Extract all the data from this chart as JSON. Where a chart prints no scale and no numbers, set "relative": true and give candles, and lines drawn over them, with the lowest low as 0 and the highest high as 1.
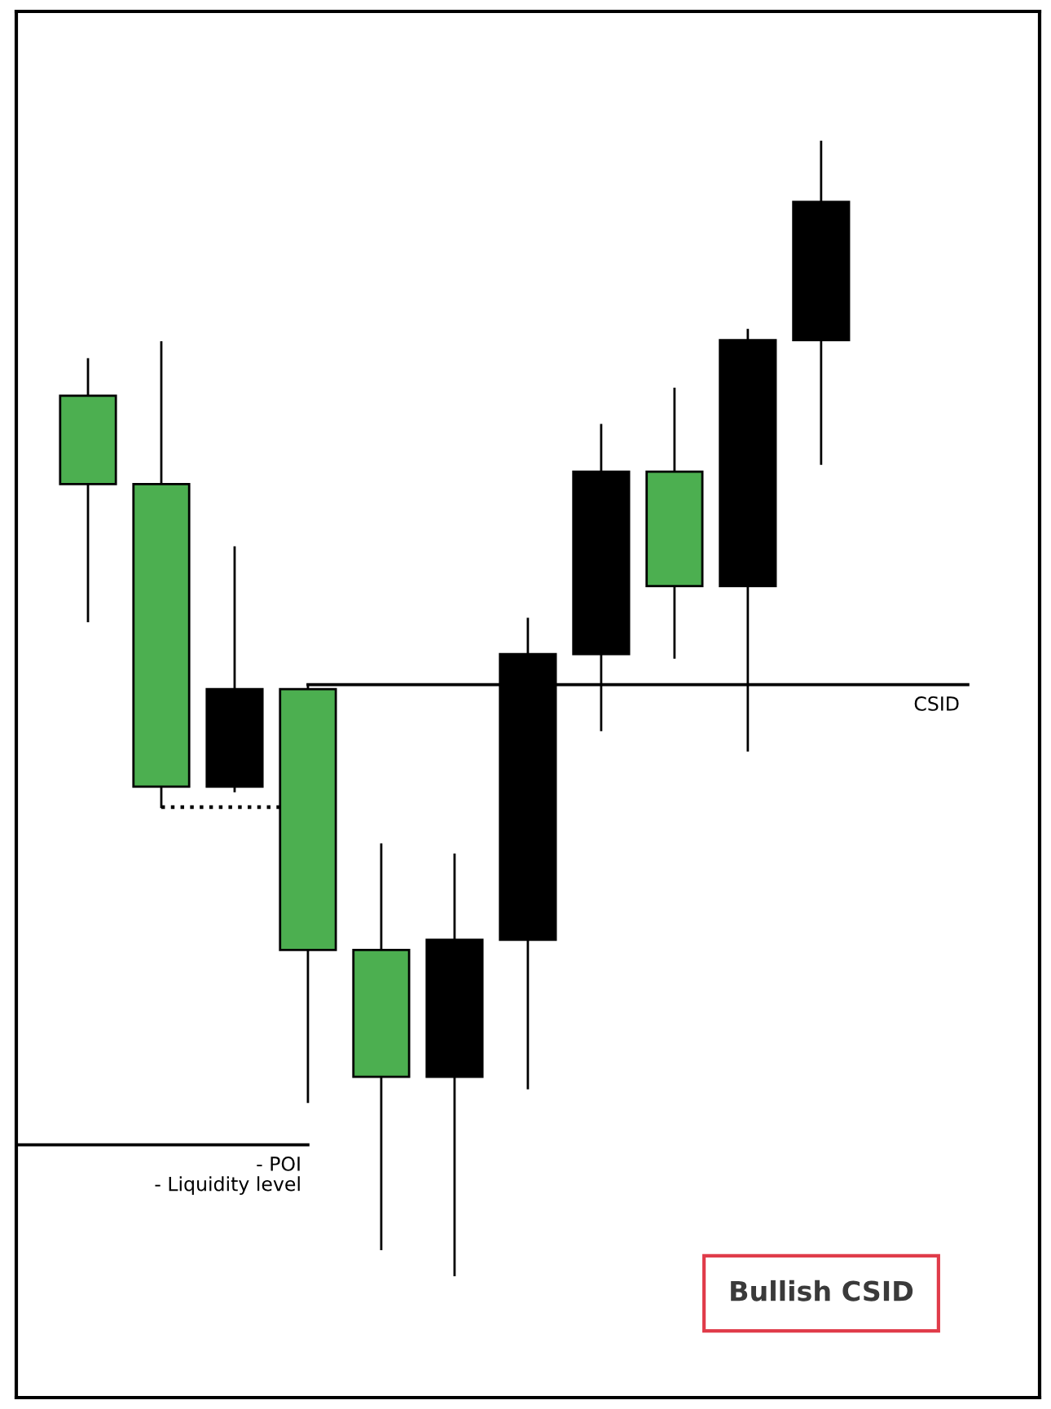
{
  "chart_data": {
    "type": "candlestick",
    "title": "Bullish CSID",
    "relative": true,
    "categories": [
      null,
      null,
      null,
      null,
      null,
      null,
      null,
      null,
      null,
      null,
      null
    ],
    "ohlc": [
      [
        0.776,
        0.808,
        0.577,
        0.698
      ],
      [
        0.698,
        0.823,
        0.413,
        0.431
      ],
      [
        0.431,
        0.642,
        0.427,
        0.517
      ],
      [
        0.517,
        0.521,
        0.153,
        0.287
      ],
      [
        0.287,
        0.38,
        0.023,
        0.175
      ],
      [
        0.175,
        0.371,
        0.0,
        0.296
      ],
      [
        0.296,
        0.579,
        0.165,
        0.548
      ],
      [
        0.548,
        0.75,
        0.481,
        0.709
      ],
      [
        0.709,
        0.782,
        0.545,
        0.608
      ],
      [
        0.608,
        0.834,
        0.463,
        0.825
      ],
      [
        0.825,
        1.0,
        0.716,
        0.947
      ]
    ],
    "colors": [
      "#4caf50",
      "#4caf50",
      "#000000",
      "#4caf50",
      "#4caf50",
      "#000000",
      "#000000",
      "#000000",
      "#4caf50",
      "#000000",
      "#000000"
    ],
    "ref_lines": [
      {
        "axis": "y",
        "value": 0.521,
        "label": "CSID",
        "line_style": "solid"
      },
      {
        "axis": "y",
        "value": 0.115,
        "label": "- POI\n- Liquidity level",
        "line_style": "solid"
      },
      {
        "axis": "y",
        "value": 0.413,
        "line_style": "dotted"
      }
    ],
    "grid": false,
    "legend": false
  }
}
